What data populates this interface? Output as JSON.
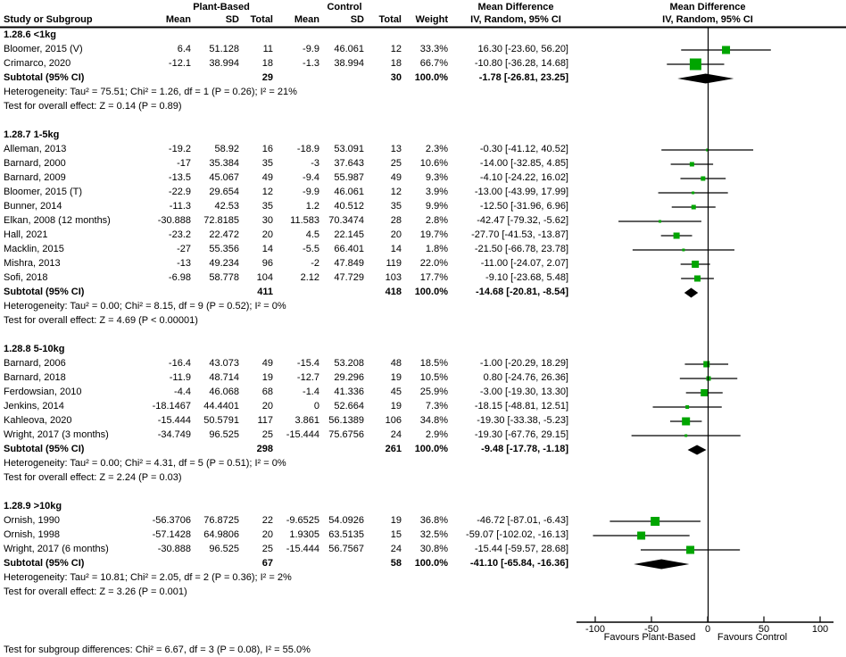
{
  "header": {
    "group1": "Plant-Based",
    "group2": "Control",
    "col_study": "Study or Subgroup",
    "col_mean": "Mean",
    "col_sd": "SD",
    "col_total": "Total",
    "col_weight": "Weight",
    "md_title": "Mean Difference",
    "md_subtitle": "IV, Random, 95% CI"
  },
  "labels": {
    "subtotal": "Subtotal (95% CI)"
  },
  "chart_data": {
    "type": "forest",
    "effect_measure": "Mean Difference (IV, Random, 95% CI)",
    "x_axis": {
      "ticks": [
        -100,
        -50,
        0,
        50,
        100
      ],
      "range_shown": [
        -116,
        112
      ],
      "label_left": "Favours Plant-Based",
      "label_right": "Favours Control"
    },
    "colors": {
      "square": "#00A500",
      "diamond": "#000000",
      "line": "#000000",
      "text": "#000000"
    },
    "sections": [
      {
        "label": "1.28.6 <1kg",
        "studies": [
          {
            "name": "Bloomer, 2015 (V)",
            "mean1": "6.4",
            "sd1": "51.128",
            "n1": "11",
            "mean2": "-9.9",
            "sd2": "46.061",
            "n2": "12",
            "weight": 33.3,
            "md": 16.3,
            "lo": -23.6,
            "hi": 56.2
          },
          {
            "name": "Crimarco, 2020",
            "mean1": "-12.1",
            "sd1": "38.994",
            "n1": "18",
            "mean2": "-1.3",
            "sd2": "38.994",
            "n2": "18",
            "weight": 66.7,
            "md": -10.8,
            "lo": -36.28,
            "hi": 14.68
          }
        ],
        "subtotal": {
          "n1": "29",
          "n2": "30",
          "weight": 100.0,
          "md": -1.78,
          "lo": -26.81,
          "hi": 23.25
        },
        "heterogeneity": "Heterogeneity: Tau² = 75.51; Chi² = 1.26, df = 1 (P = 0.26); I² = 21%",
        "overall": "Test for overall effect: Z = 0.14 (P = 0.89)"
      },
      {
        "label": "1.28.7 1-5kg",
        "studies": [
          {
            "name": "Alleman, 2013",
            "mean1": "-19.2",
            "sd1": "58.92",
            "n1": "16",
            "mean2": "-18.9",
            "sd2": "53.091",
            "n2": "13",
            "weight": 2.3,
            "md": -0.3,
            "lo": -41.12,
            "hi": 40.52
          },
          {
            "name": "Barnard, 2000",
            "mean1": "-17",
            "sd1": "35.384",
            "n1": "35",
            "mean2": "-3",
            "sd2": "37.643",
            "n2": "25",
            "weight": 10.6,
            "md": -14.0,
            "lo": -32.85,
            "hi": 4.85
          },
          {
            "name": "Barnard, 2009",
            "mean1": "-13.5",
            "sd1": "45.067",
            "n1": "49",
            "mean2": "-9.4",
            "sd2": "55.987",
            "n2": "49",
            "weight": 9.3,
            "md": -4.1,
            "lo": -24.22,
            "hi": 16.02
          },
          {
            "name": "Bloomer, 2015 (T)",
            "mean1": "-22.9",
            "sd1": "29.654",
            "n1": "12",
            "mean2": "-9.9",
            "sd2": "46.061",
            "n2": "12",
            "weight": 3.9,
            "md": -13.0,
            "lo": -43.99,
            "hi": 17.99
          },
          {
            "name": "Bunner, 2014",
            "mean1": "-11.3",
            "sd1": "42.53",
            "n1": "35",
            "mean2": "1.2",
            "sd2": "40.512",
            "n2": "35",
            "weight": 9.9,
            "md": -12.5,
            "lo": -31.96,
            "hi": 6.96
          },
          {
            "name": "Elkan, 2008 (12 months)",
            "mean1": "-30.888",
            "sd1": "72.8185",
            "n1": "30",
            "mean2": "11.583",
            "sd2": "70.3474",
            "n2": "28",
            "weight": 2.8,
            "md": -42.47,
            "lo": -79.32,
            "hi": -5.62
          },
          {
            "name": "Hall, 2021",
            "mean1": "-23.2",
            "sd1": "22.472",
            "n1": "20",
            "mean2": "4.5",
            "sd2": "22.145",
            "n2": "20",
            "weight": 19.7,
            "md": -27.7,
            "lo": -41.53,
            "hi": -13.87
          },
          {
            "name": "Macklin, 2015",
            "mean1": "-27",
            "sd1": "55.356",
            "n1": "14",
            "mean2": "-5.5",
            "sd2": "66.401",
            "n2": "14",
            "weight": 1.8,
            "md": -21.5,
            "lo": -66.78,
            "hi": 23.78
          },
          {
            "name": "Mishra, 2013",
            "mean1": "-13",
            "sd1": "49.234",
            "n1": "96",
            "mean2": "-2",
            "sd2": "47.849",
            "n2": "119",
            "weight": 22.0,
            "md": -11.0,
            "lo": -24.07,
            "hi": 2.07
          },
          {
            "name": "Sofi, 2018",
            "mean1": "-6.98",
            "sd1": "58.778",
            "n1": "104",
            "mean2": "2.12",
            "sd2": "47.729",
            "n2": "103",
            "weight": 17.7,
            "md": -9.1,
            "lo": -23.68,
            "hi": 5.48
          }
        ],
        "subtotal": {
          "n1": "411",
          "n2": "418",
          "weight": 100.0,
          "md": -14.68,
          "lo": -20.81,
          "hi": -8.54
        },
        "heterogeneity": "Heterogeneity: Tau² = 0.00; Chi² = 8.15, df = 9 (P = 0.52); I² = 0%",
        "overall": "Test for overall effect: Z = 4.69 (P < 0.00001)"
      },
      {
        "label": "1.28.8 5-10kg",
        "studies": [
          {
            "name": "Barnard, 2006",
            "mean1": "-16.4",
            "sd1": "43.073",
            "n1": "49",
            "mean2": "-15.4",
            "sd2": "53.208",
            "n2": "48",
            "weight": 18.5,
            "md": -1.0,
            "lo": -20.29,
            "hi": 18.29
          },
          {
            "name": "Barnard, 2018",
            "mean1": "-11.9",
            "sd1": "48.714",
            "n1": "19",
            "mean2": "-12.7",
            "sd2": "29.296",
            "n2": "19",
            "weight": 10.5,
            "md": 0.8,
            "lo": -24.76,
            "hi": 26.36
          },
          {
            "name": "Ferdowsian, 2010",
            "mean1": "-4.4",
            "sd1": "46.068",
            "n1": "68",
            "mean2": "-1.4",
            "sd2": "41.336",
            "n2": "45",
            "weight": 25.9,
            "md": -3.0,
            "lo": -19.3,
            "hi": 13.3
          },
          {
            "name": "Jenkins, 2014",
            "mean1": "-18.1467",
            "sd1": "44.4401",
            "n1": "20",
            "mean2": "0",
            "sd2": "52.664",
            "n2": "19",
            "weight": 7.3,
            "md": -18.15,
            "lo": -48.81,
            "hi": 12.51
          },
          {
            "name": "Kahleova, 2020",
            "mean1": "-15.444",
            "sd1": "50.5791",
            "n1": "117",
            "mean2": "3.861",
            "sd2": "56.1389",
            "n2": "106",
            "weight": 34.8,
            "md": -19.3,
            "lo": -33.38,
            "hi": -5.23
          },
          {
            "name": "Wright, 2017 (3 months)",
            "mean1": "-34.749",
            "sd1": "96.525",
            "n1": "25",
            "mean2": "-15.444",
            "sd2": "75.6756",
            "n2": "24",
            "weight": 2.9,
            "md": -19.3,
            "lo": -67.76,
            "hi": 29.15
          }
        ],
        "subtotal": {
          "n1": "298",
          "n2": "261",
          "weight": 100.0,
          "md": -9.48,
          "lo": -17.78,
          "hi": -1.18
        },
        "heterogeneity": "Heterogeneity: Tau² = 0.00; Chi² = 4.31, df = 5 (P = 0.51); I² = 0%",
        "overall": "Test for overall effect: Z = 2.24 (P = 0.03)"
      },
      {
        "label": "1.28.9 >10kg",
        "studies": [
          {
            "name": "Ornish, 1990",
            "mean1": "-56.3706",
            "sd1": "76.8725",
            "n1": "22",
            "mean2": "-9.6525",
            "sd2": "54.0926",
            "n2": "19",
            "weight": 36.8,
            "md": -46.72,
            "lo": -87.01,
            "hi": -6.43
          },
          {
            "name": "Ornish, 1998",
            "mean1": "-57.1428",
            "sd1": "64.9806",
            "n1": "20",
            "mean2": "1.9305",
            "sd2": "63.5135",
            "n2": "15",
            "weight": 32.5,
            "md": -59.07,
            "lo": -102.02,
            "hi": -16.13
          },
          {
            "name": "Wright, 2017 (6 months)",
            "mean1": "-30.888",
            "sd1": "96.525",
            "n1": "25",
            "mean2": "-15.444",
            "sd2": "56.7567",
            "n2": "24",
            "weight": 30.8,
            "md": -15.44,
            "lo": -59.57,
            "hi": 28.68
          }
        ],
        "subtotal": {
          "n1": "67",
          "n2": "58",
          "weight": 100.0,
          "md": -41.1,
          "lo": -65.84,
          "hi": -16.36
        },
        "heterogeneity": "Heterogeneity: Tau² = 10.81; Chi² = 2.05, df = 2 (P = 0.36); I² = 2%",
        "overall": "Test for overall effect: Z = 3.26 (P = 0.001)"
      }
    ],
    "footer": "Test for subgroup differences: Chi² = 6.67, df = 3 (P = 0.08), I² = 55.0%"
  }
}
